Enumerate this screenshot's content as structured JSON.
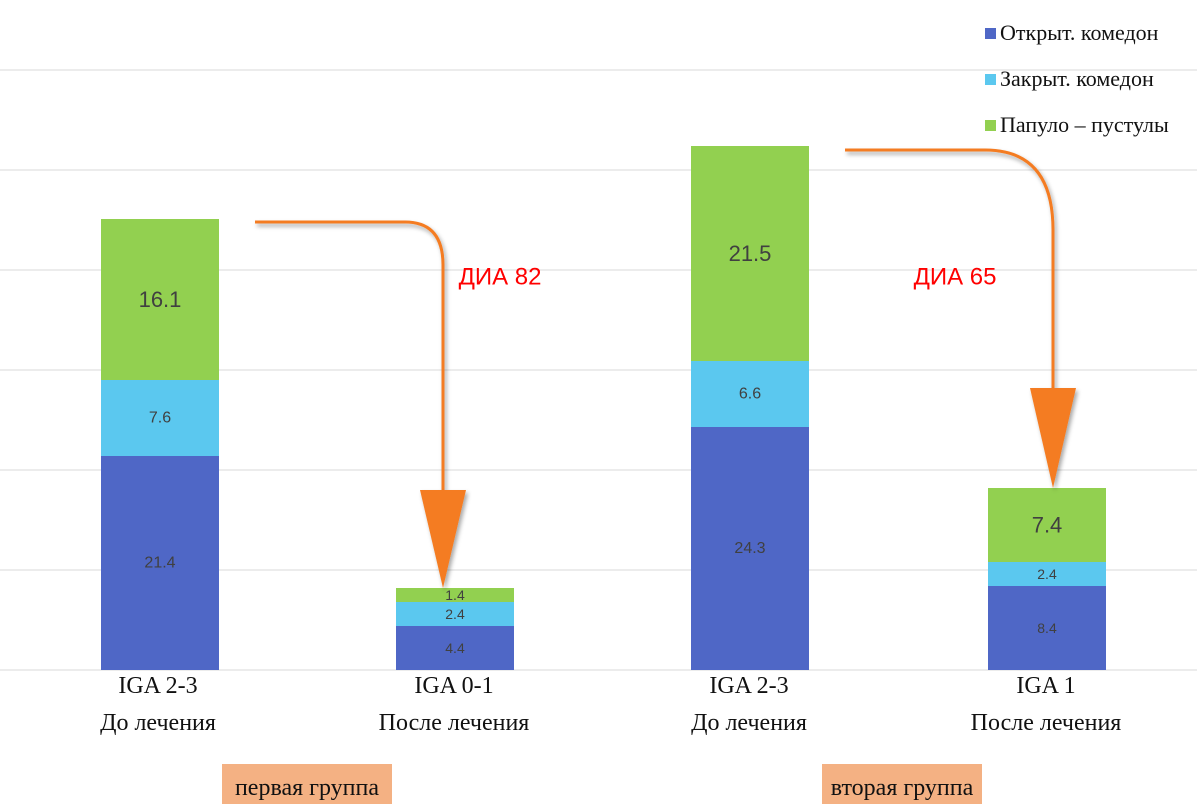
{
  "legend": [
    {
      "label": "Открыт. комедон",
      "color": "#4f67c6"
    },
    {
      "label": "Закрыт. комедон",
      "color": "#5bc8ef"
    },
    {
      "label": "Папуло – пустулы",
      "color": "#92d050"
    }
  ],
  "groups": [
    {
      "label": "первая группа"
    },
    {
      "label": "вторая группа"
    }
  ],
  "annotations": [
    {
      "text": "ДИА 82",
      "color": "#ff0000"
    },
    {
      "text": "ДИА 65",
      "color": "#ff0000"
    }
  ],
  "arrow_color": "#f47c20",
  "chart_data": {
    "type": "bar",
    "stacked": true,
    "categories": [
      {
        "line1": "IGA 2-3",
        "line2": "До лечения"
      },
      {
        "line1": "IGA 0-1",
        "line2": "После лечения"
      },
      {
        "line1": "IGA 2-3",
        "line2": "До лечения"
      },
      {
        "line1": "IGA 1",
        "line2": "После лечения"
      }
    ],
    "series": [
      {
        "name": "Открыт. комедон",
        "color": "#4f67c6",
        "values": [
          21.4,
          4.4,
          24.3,
          8.4
        ]
      },
      {
        "name": "Закрыт. комедон",
        "color": "#5bc8ef",
        "values": [
          7.6,
          2.4,
          6.6,
          2.4
        ]
      },
      {
        "name": "Папуло – пустулы",
        "color": "#92d050",
        "values": [
          16.1,
          1.4,
          21.5,
          7.4
        ]
      }
    ],
    "ylim": [
      0,
      60
    ],
    "grid": true,
    "legend_position": "top-right"
  }
}
